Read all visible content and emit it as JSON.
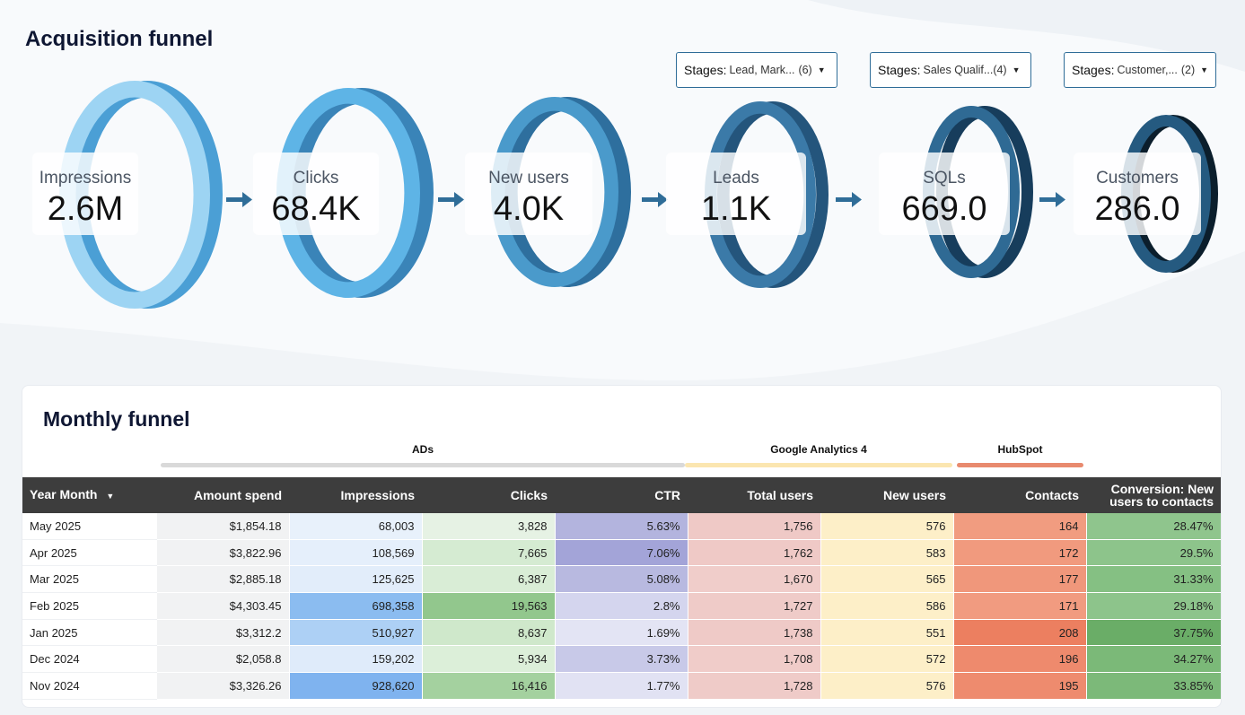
{
  "page": {
    "title": "Acquisition funnel"
  },
  "filters": [
    {
      "label": "Stages",
      "value": "Lead, Mark...",
      "count": "(6)"
    },
    {
      "label": "Stages",
      "value": "Sales Qualif...",
      "count": "(4)"
    },
    {
      "label": "Stages",
      "value": "Customer,...",
      "count": "(2)"
    }
  ],
  "funnel": [
    {
      "label": "Impressions",
      "value": "2.6M",
      "front": "#9dd4f3",
      "side": "#4b9fd5"
    },
    {
      "label": "Clicks",
      "value": "68.4K",
      "front": "#5eb4e6",
      "side": "#3a84b8"
    },
    {
      "label": "New users",
      "value": "4.0K",
      "front": "#4a9acb",
      "side": "#2e6f9e"
    },
    {
      "label": "Leads",
      "value": "1.1K",
      "front": "#3b7aa8",
      "side": "#24557c"
    },
    {
      "label": "SQLs",
      "value": "669.0",
      "front": "#2f6a94",
      "side": "#173d5c"
    },
    {
      "label": "Customers",
      "value": "286.0",
      "front": "#255a80",
      "side": "#0b1e2c"
    }
  ],
  "monthly": {
    "title": "Monthly funnel",
    "groups": [
      {
        "name": "ADs",
        "color": "#d9d9d9"
      },
      {
        "name": "Google Analytics 4",
        "color": "#fbe6b0"
      },
      {
        "name": "HubSpot",
        "color": "#e88a6e"
      }
    ],
    "sort_icon": "sort-desc-icon",
    "columns": [
      "Year Month",
      "Amount spend",
      "Impressions",
      "Clicks",
      "CTR",
      "Total users",
      "New users",
      "Contacts",
      "Conversion: New users to contacts"
    ],
    "rows": [
      [
        "May 2025",
        "$1,854.18",
        "68,003",
        "3,828",
        "5.63%",
        "1,756",
        "576",
        "164",
        "28.47%"
      ],
      [
        "Apr 2025",
        "$3,822.96",
        "108,569",
        "7,665",
        "7.06%",
        "1,762",
        "583",
        "172",
        "29.5%"
      ],
      [
        "Mar 2025",
        "$2,885.18",
        "125,625",
        "6,387",
        "5.08%",
        "1,670",
        "565",
        "177",
        "31.33%"
      ],
      [
        "Feb 2025",
        "$4,303.45",
        "698,358",
        "19,563",
        "2.8%",
        "1,727",
        "586",
        "171",
        "29.18%"
      ],
      [
        "Jan 2025",
        "$3,312.2",
        "510,927",
        "8,637",
        "1.69%",
        "1,738",
        "551",
        "208",
        "37.75%"
      ],
      [
        "Dec 2024",
        "$2,058.8",
        "159,202",
        "5,934",
        "3.73%",
        "1,708",
        "572",
        "196",
        "34.27%"
      ],
      [
        "Nov 2024",
        "$3,326.26",
        "928,620",
        "16,416",
        "1.77%",
        "1,728",
        "576",
        "195",
        "33.85%"
      ]
    ],
    "cell_colors": [
      [
        "#f1f2f3",
        "#e8f1fb",
        "#e6f2e4",
        "#b3b4de",
        "#efc9c6",
        "#fdefc8",
        "#f19c80",
        "#8fc58d"
      ],
      [
        "#f1f2f3",
        "#e5effb",
        "#d5ebd2",
        "#a3a4d8",
        "#efc9c6",
        "#fdefc8",
        "#f19a7e",
        "#8dc48b"
      ],
      [
        "#f1f2f3",
        "#e2edfa",
        "#d9edd6",
        "#b8b9e0",
        "#f0cdca",
        "#fdefc8",
        "#f0977b",
        "#85c083"
      ],
      [
        "#f1f2f3",
        "#8bbcf0",
        "#92c78d",
        "#d4d5ee",
        "#efcbc8",
        "#fdefc8",
        "#f19b80",
        "#8dc48b"
      ],
      [
        "#f1f2f3",
        "#add0f5",
        "#cfe8cb",
        "#e3e4f4",
        "#efcac7",
        "#fdefc8",
        "#ec7f60",
        "#6aad67"
      ],
      [
        "#f1f2f3",
        "#dfebfa",
        "#dcefd9",
        "#c8c9e8",
        "#f0ccc9",
        "#fdefc8",
        "#ee8a6d",
        "#7bb978"
      ],
      [
        "#f1f2f3",
        "#7fb3ef",
        "#a4d19f",
        "#e1e2f3",
        "#efcbc8",
        "#fdefc8",
        "#ee8b6e",
        "#7cb979"
      ]
    ]
  }
}
